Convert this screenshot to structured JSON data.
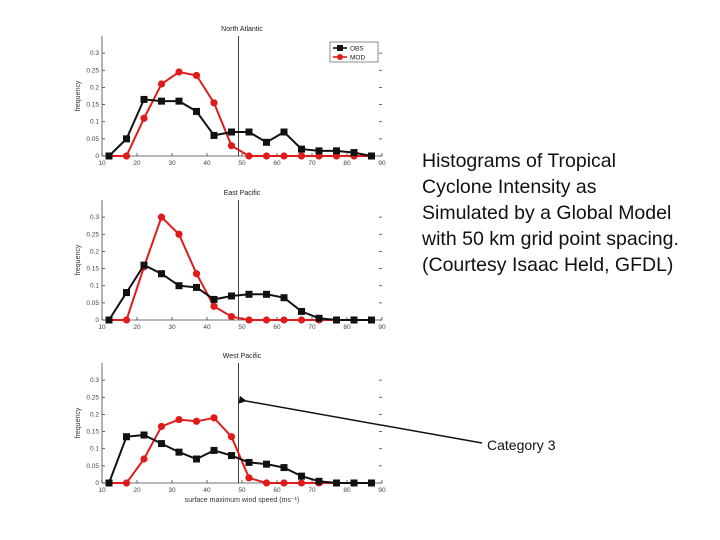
{
  "caption": "Histograms of Tropical Cyclone Intensity as Simulated by a Global Model with 50 km grid point spacing. (Courtesy Isaac Held, GFDL)",
  "callout": {
    "label": "Category 3"
  },
  "colors": {
    "obs": "#111111",
    "model": "#e01b1b"
  },
  "chart_data": [
    {
      "type": "line",
      "title": "North Atlantic",
      "ylabel": "frequency",
      "xlabel": "",
      "xlim": [
        10,
        90
      ],
      "ylim": [
        0,
        0.35
      ],
      "xticks": [
        "10",
        "20",
        "30",
        "40",
        "50",
        "60",
        "70",
        "80",
        "90"
      ],
      "yticks": [
        "0",
        "0.05",
        "0.1",
        "0.15",
        "0.2",
        "0.25",
        "0.3"
      ],
      "vline": 49,
      "legend": {
        "position": "top-right",
        "entries": [
          "OBS",
          "MOD"
        ]
      },
      "x": [
        12,
        17,
        22,
        27,
        32,
        37,
        42,
        47,
        52,
        57,
        62,
        67,
        72,
        77,
        82,
        87
      ],
      "series": [
        {
          "name": "OBS",
          "values": [
            0,
            0.05,
            0.165,
            0.16,
            0.16,
            0.13,
            0.06,
            0.07,
            0.07,
            0.04,
            0.07,
            0.02,
            0.015,
            0.015,
            0.01,
            0
          ]
        },
        {
          "name": "MOD",
          "values": [
            0,
            0,
            0.11,
            0.21,
            0.245,
            0.235,
            0.155,
            0.03,
            0,
            0,
            0,
            0,
            0,
            0,
            0,
            0
          ]
        }
      ]
    },
    {
      "type": "line",
      "title": "East Pacific",
      "ylabel": "frequency",
      "xlabel": "",
      "xlim": [
        10,
        90
      ],
      "ylim": [
        0,
        0.35
      ],
      "xticks": [
        "10",
        "20",
        "30",
        "40",
        "50",
        "60",
        "70",
        "80",
        "90"
      ],
      "yticks": [
        "0",
        "0.05",
        "0.1",
        "0.15",
        "0.2",
        "0.25",
        "0.3"
      ],
      "vline": 49,
      "x": [
        12,
        17,
        22,
        27,
        32,
        37,
        42,
        47,
        52,
        57,
        62,
        67,
        72,
        77,
        82,
        87
      ],
      "series": [
        {
          "name": "OBS",
          "values": [
            0,
            0.08,
            0.16,
            0.135,
            0.1,
            0.095,
            0.06,
            0.07,
            0.075,
            0.075,
            0.065,
            0.025,
            0.005,
            0,
            0,
            0
          ]
        },
        {
          "name": "MOD",
          "values": [
            0,
            0,
            0.155,
            0.3,
            0.25,
            0.135,
            0.04,
            0.01,
            0,
            0,
            0,
            0,
            0,
            0,
            0,
            0
          ]
        }
      ]
    },
    {
      "type": "line",
      "title": "West Pacific",
      "ylabel": "frequency",
      "xlabel": "surface maximum wind speed (ms⁻¹)",
      "xlim": [
        10,
        90
      ],
      "ylim": [
        0,
        0.35
      ],
      "xticks": [
        "10",
        "20",
        "30",
        "40",
        "50",
        "60",
        "70",
        "80",
        "90"
      ],
      "yticks": [
        "0",
        "0.05",
        "0.1",
        "0.15",
        "0.2",
        "0.25",
        "0.3"
      ],
      "vline": 49,
      "x": [
        12,
        17,
        22,
        27,
        32,
        37,
        42,
        47,
        52,
        57,
        62,
        67,
        72,
        77,
        82,
        87
      ],
      "series": [
        {
          "name": "OBS",
          "values": [
            0,
            0.135,
            0.14,
            0.115,
            0.09,
            0.07,
            0.095,
            0.08,
            0.06,
            0.055,
            0.045,
            0.02,
            0.005,
            0,
            0,
            0
          ]
        },
        {
          "name": "MOD",
          "values": [
            0,
            0,
            0.07,
            0.165,
            0.185,
            0.18,
            0.19,
            0.135,
            0.015,
            0,
            0,
            0,
            0,
            0,
            0,
            0
          ]
        }
      ]
    }
  ]
}
